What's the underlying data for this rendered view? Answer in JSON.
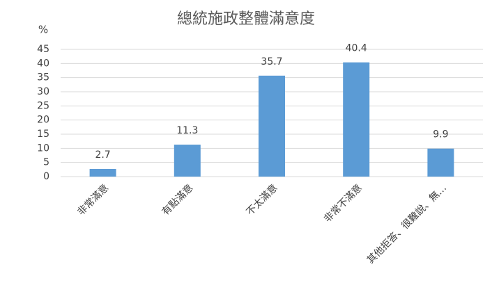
{
  "chart_data": {
    "type": "bar",
    "title": "總統施政整體滿意度",
    "y_label": "%",
    "categories": [
      "非常滿意",
      "有點滿意",
      "不太滿意",
      "非常不滿意",
      "其他拒答、很難說、無…"
    ],
    "values": [
      2.7,
      11.3,
      35.7,
      40.4,
      9.9
    ],
    "color": "#5b9bd5",
    "ylim": [
      0,
      45
    ],
    "yticks": [
      0,
      5,
      10,
      15,
      20,
      25,
      30,
      35,
      40,
      45
    ],
    "grid": true,
    "data_labels": true
  }
}
